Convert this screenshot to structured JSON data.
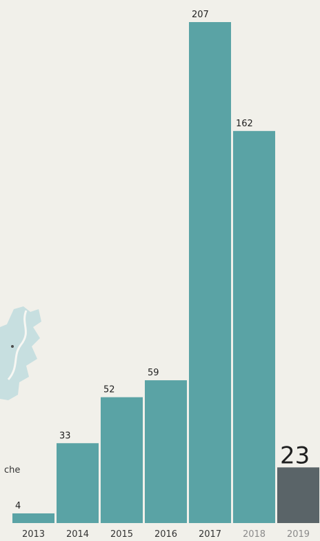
{
  "side_text": "che",
  "colors": {
    "bar": "#5aa3a5",
    "highlight_bar": "#5a6468",
    "map": "#c7dfe0",
    "label": "#1f1f1f",
    "year": "#333333",
    "year_faded": "#8a8a8a",
    "background": "#f1f0ea"
  },
  "chart_data": {
    "type": "bar",
    "categories": [
      "2013",
      "2014",
      "2015",
      "2016",
      "2017",
      "2018",
      "2019"
    ],
    "values": [
      4,
      33,
      52,
      59,
      207,
      162,
      23
    ],
    "data_labels": [
      "4",
      "33",
      "52",
      "59",
      "207",
      "162",
      "23"
    ],
    "highlight_index": 6,
    "faded_indices": [
      5,
      6
    ],
    "title": "",
    "xlabel": "",
    "ylabel": "",
    "ylim": [
      0,
      207
    ],
    "grid": false,
    "legend": "none"
  }
}
